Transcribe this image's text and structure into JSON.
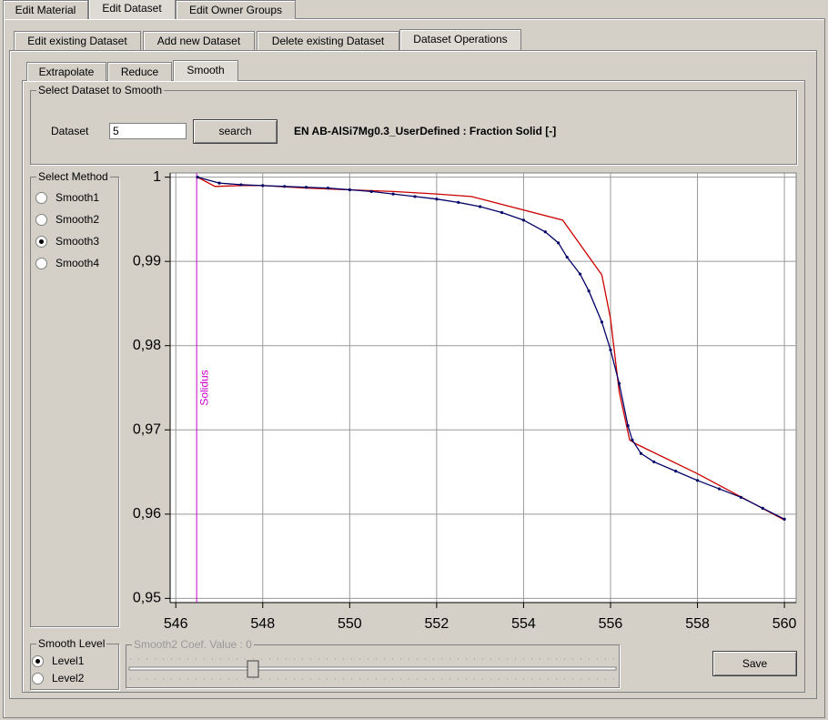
{
  "tabs": {
    "top": [
      "Edit Material",
      "Edit Dataset",
      "Edit Owner Groups"
    ],
    "top_selected": 1,
    "second": [
      "Edit existing Dataset",
      "Add new Dataset",
      "Delete existing Dataset",
      "Dataset Operations"
    ],
    "second_selected": 3,
    "third": [
      "Extrapolate",
      "Reduce",
      "Smooth"
    ],
    "third_selected": 2
  },
  "dataset_group": {
    "title": "Select Dataset to Smooth",
    "label": "Dataset",
    "input": "5",
    "button": "search",
    "description": "EN AB-AlSi7Mg0.3_UserDefined : Fraction Solid [-]"
  },
  "method_group": {
    "title": "Select Method",
    "options": [
      "Smooth1",
      "Smooth2",
      "Smooth3",
      "Smooth4"
    ],
    "selected": 2
  },
  "level_group": {
    "title": "Smooth Level",
    "options": [
      "Level1",
      "Level2"
    ],
    "selected": 0
  },
  "slider": {
    "label": "Smooth2 Coef. Value : 0"
  },
  "save_button": "Save",
  "chart_data": {
    "type": "line",
    "xlim": [
      545.87,
      560.27
    ],
    "ylim": [
      0.9495,
      1.0005
    ],
    "xticks": [
      546,
      548,
      550,
      552,
      554,
      556,
      558,
      560
    ],
    "yticks": [
      {
        "value": 0.95,
        "label": "0,95"
      },
      {
        "value": 0.96,
        "label": "0,96"
      },
      {
        "value": 0.97,
        "label": "0,97"
      },
      {
        "value": 0.98,
        "label": "0,98"
      },
      {
        "value": 0.99,
        "label": "0,99"
      },
      1
    ],
    "grid": true,
    "annotations": [
      {
        "text": "Solidus",
        "x": 546.48,
        "color": "#cc00cc"
      }
    ],
    "series": [
      {
        "color": "#cc0000",
        "x": [
          546.5,
          546.9,
          547.5,
          548,
          549,
          550,
          551,
          552,
          552.8,
          554.9,
          555.8,
          556.0,
          556.2,
          556.44,
          556.6,
          558,
          560
        ],
        "values": [
          1.0,
          0.9989,
          0.999,
          0.999,
          0.9987,
          0.9985,
          0.9983,
          0.998,
          0.9977,
          0.9949,
          0.9884,
          0.9832,
          0.9745,
          0.9688,
          0.9683,
          0.9648,
          0.9593
        ]
      },
      {
        "color": "#000066",
        "markers": true,
        "x": [
          546.5,
          547,
          547.5,
          548,
          548.5,
          549,
          549.5,
          550,
          550.5,
          551,
          551.5,
          552,
          552.5,
          553,
          553.5,
          554,
          554.5,
          554.8,
          555,
          555.3,
          555.5,
          555.8,
          556,
          556.2,
          556.4,
          556.5,
          556.7,
          557,
          557.5,
          558,
          558.5,
          559,
          559.5,
          560
        ],
        "values": [
          1.0,
          0.9993,
          0.9991,
          0.999,
          0.9989,
          0.9988,
          0.9987,
          0.9985,
          0.9983,
          0.998,
          0.9977,
          0.9974,
          0.997,
          0.9965,
          0.9958,
          0.9949,
          0.9935,
          0.9922,
          0.9905,
          0.9885,
          0.9865,
          0.9828,
          0.9795,
          0.9755,
          0.9705,
          0.9688,
          0.9672,
          0.9662,
          0.9651,
          0.964,
          0.963,
          0.962,
          0.9607,
          0.9594
        ]
      }
    ]
  }
}
